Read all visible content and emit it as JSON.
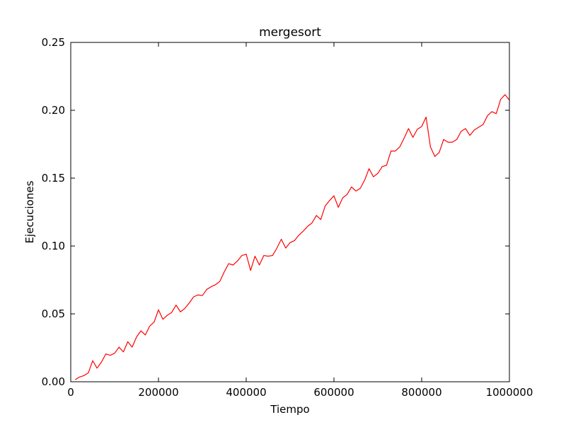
{
  "chart_data": {
    "type": "line",
    "title": "mergesort",
    "xlabel": "Tiempo",
    "ylabel": "Ejecuciones",
    "xlim": [
      0,
      1000000
    ],
    "ylim": [
      0,
      0.25
    ],
    "xticks": [
      0,
      200000,
      400000,
      600000,
      800000,
      1000000
    ],
    "xtick_labels": [
      "0",
      "200000",
      "400000",
      "600000",
      "800000",
      "1000000"
    ],
    "yticks": [
      0,
      0.05,
      0.1,
      0.15,
      0.2,
      0.25
    ],
    "ytick_labels": [
      "0.00",
      "0.05",
      "0.10",
      "0.15",
      "0.20",
      "0.25"
    ],
    "grid": false,
    "legend": "none",
    "series": [
      {
        "color": "#ff0000",
        "x": [
          10000,
          20000,
          30000,
          40000,
          50000,
          60000,
          70000,
          80000,
          90000,
          100000,
          110000,
          120000,
          130000,
          140000,
          150000,
          160000,
          170000,
          180000,
          190000,
          200000,
          210000,
          220000,
          230000,
          240000,
          250000,
          260000,
          270000,
          280000,
          290000,
          300000,
          310000,
          320000,
          330000,
          340000,
          350000,
          360000,
          370000,
          380000,
          390000,
          400000,
          410000,
          420000,
          430000,
          440000,
          450000,
          460000,
          470000,
          480000,
          490000,
          500000,
          510000,
          520000,
          530000,
          540000,
          550000,
          560000,
          570000,
          580000,
          590000,
          600000,
          610000,
          620000,
          630000,
          640000,
          650000,
          660000,
          670000,
          680000,
          690000,
          700000,
          710000,
          720000,
          730000,
          740000,
          750000,
          760000,
          770000,
          780000,
          790000,
          800000,
          810000,
          820000,
          830000,
          840000,
          850000,
          860000,
          870000,
          880000,
          890000,
          900000,
          910000,
          920000,
          930000,
          940000,
          950000,
          960000,
          970000,
          980000,
          990000,
          1000000
        ],
        "y": [
          0.0015,
          0.0035,
          0.0045,
          0.0065,
          0.0155,
          0.01,
          0.0145,
          0.0205,
          0.0195,
          0.021,
          0.0255,
          0.022,
          0.0295,
          0.0255,
          0.033,
          0.0375,
          0.0345,
          0.041,
          0.044,
          0.053,
          0.046,
          0.049,
          0.051,
          0.0565,
          0.0515,
          0.054,
          0.058,
          0.0625,
          0.064,
          0.0635,
          0.068,
          0.07,
          0.0715,
          0.074,
          0.081,
          0.087,
          0.086,
          0.089,
          0.093,
          0.094,
          0.082,
          0.0925,
          0.086,
          0.093,
          0.0925,
          0.093,
          0.0985,
          0.105,
          0.0985,
          0.1025,
          0.104,
          0.108,
          0.111,
          0.1145,
          0.117,
          0.1225,
          0.1195,
          0.1295,
          0.1335,
          0.137,
          0.1285,
          0.1355,
          0.138,
          0.1435,
          0.1405,
          0.1425,
          0.1485,
          0.157,
          0.151,
          0.1535,
          0.1585,
          0.1595,
          0.17,
          0.17,
          0.173,
          0.1795,
          0.1865,
          0.18,
          0.186,
          0.188,
          0.195,
          0.173,
          0.166,
          0.169,
          0.1785,
          0.1765,
          0.1765,
          0.1785,
          0.1845,
          0.1865,
          0.1815,
          0.1855,
          0.1875,
          0.1895,
          0.196,
          0.199,
          0.1975,
          0.208,
          0.2115,
          0.2075
        ]
      }
    ]
  }
}
